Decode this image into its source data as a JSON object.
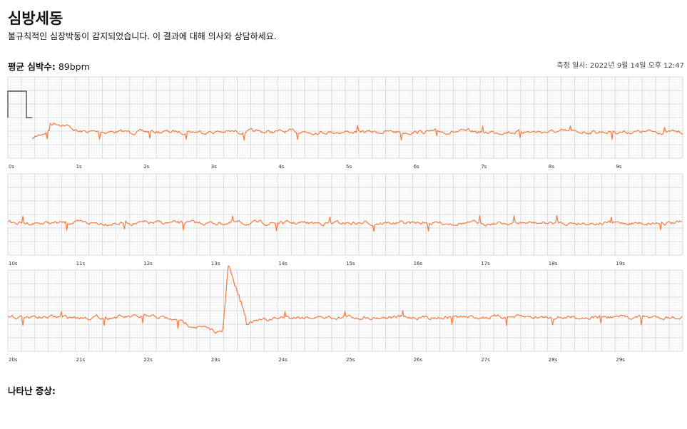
{
  "header": {
    "title": "심방세동",
    "subtitle": "불규칙적인 심장박동이 감지되었습니다. 이 결과에 대해 의사와 상담하세요."
  },
  "summary": {
    "label": "평균 심박수:",
    "value": "89bpm",
    "measured": "측정 일시: 2022년 9월 14일 오후 12:47"
  },
  "strips": [
    {
      "ticks": [
        "0s",
        "1s",
        "2s",
        "3s",
        "4s",
        "5s",
        "6s",
        "7s",
        "8s",
        "9s"
      ]
    },
    {
      "ticks": [
        "10s",
        "11s",
        "12s",
        "13s",
        "14s",
        "15s",
        "16s",
        "17s",
        "18s",
        "19s"
      ]
    },
    {
      "ticks": [
        "20s",
        "21s",
        "22s",
        "23s",
        "24s",
        "25s",
        "26s",
        "27s",
        "28s",
        "29s"
      ]
    }
  ],
  "footer": {
    "symptoms": "나타난 증상:"
  }
}
